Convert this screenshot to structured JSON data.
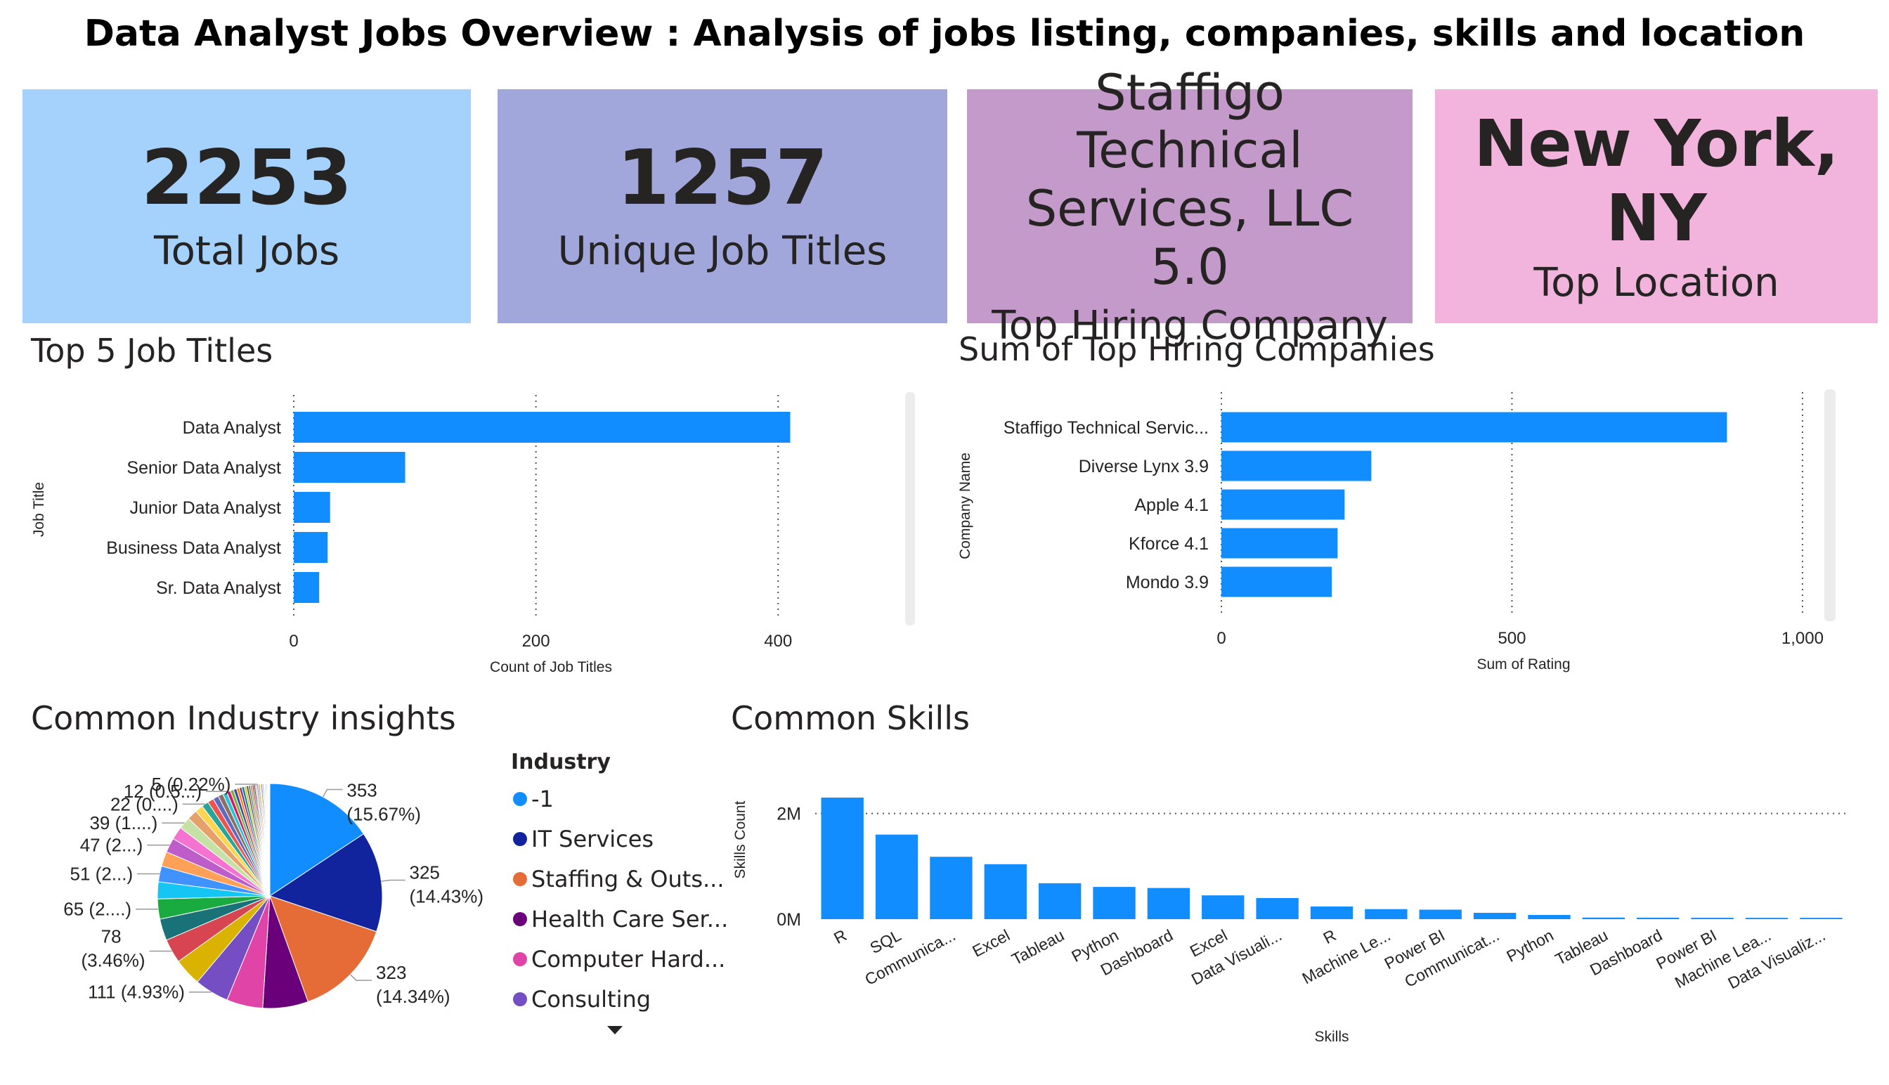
{
  "title": "Data Analyst Jobs Overview : Analysis of jobs listing, companies, skills and location",
  "cards": [
    {
      "value": "2253",
      "label": "Total Jobs",
      "color": "#a4d2fc"
    },
    {
      "value": "1257",
      "label": "Unique Job Titles",
      "color": "#a2a7db"
    },
    {
      "value": "Staffigo Technical Services, LLC 5.0",
      "label": "Top Hiring Company",
      "color": "#c39ac9"
    },
    {
      "value": "New York, NY",
      "label": "Top Location",
      "color": "#f2b4dc"
    }
  ],
  "sections": {
    "job_titles": "Top 5 Job Titles",
    "companies": "Sum of Top Hiring Companies",
    "industry": "Common Industry insights",
    "skills": "Common Skills"
  },
  "chart_data": [
    {
      "type": "bar",
      "orientation": "horizontal",
      "categories": [
        "Data Analyst",
        "Senior Data Analyst",
        "Junior Data Analyst",
        "Business Data Analyst",
        "Sr. Data Analyst"
      ],
      "values": [
        410,
        92,
        30,
        28,
        21
      ],
      "xlabel": "Count of Job Titles",
      "ylabel": "Job Title",
      "xlim": [
        0,
        520
      ],
      "xticks": [
        0,
        200,
        400
      ],
      "xtick_labels": [
        "0",
        "200",
        "400"
      ],
      "color": "#118dff",
      "grid": "vertical-dotted"
    },
    {
      "type": "bar",
      "orientation": "horizontal",
      "categories": [
        "Staffigo Technical Servic...",
        "Diverse Lynx 3.9",
        "Apple 4.1",
        "Kforce 4.1",
        "Mondo 3.9"
      ],
      "values": [
        870,
        258,
        212,
        200,
        190
      ],
      "xlabel": "Sum of Rating",
      "ylabel": "Company Name",
      "xlim": [
        0,
        1040
      ],
      "xticks": [
        0,
        500,
        1000
      ],
      "xtick_labels": [
        "0",
        "500",
        "1,000"
      ],
      "color": "#118dff",
      "grid": "vertical-dotted"
    },
    {
      "type": "pie",
      "legend_title": "Industry",
      "legend": [
        {
          "name": "-1",
          "color": "#118dff"
        },
        {
          "name": "IT Services",
          "color": "#12239e"
        },
        {
          "name": "Staffing & Outs...",
          "color": "#e66c37"
        },
        {
          "name": "Health Care Ser...",
          "color": "#6b007b"
        },
        {
          "name": "Computer Hard...",
          "color": "#e044a7"
        },
        {
          "name": "Consulting",
          "color": "#744ec2"
        }
      ],
      "slices": [
        {
          "value": 353,
          "color": "#118dff",
          "label": "353 (15.67%)"
        },
        {
          "value": 325,
          "color": "#12239e",
          "label": "325 (14.43%)"
        },
        {
          "value": 323,
          "color": "#e66c37",
          "label": "323 (14.34%)"
        },
        {
          "value": 147,
          "color": "#6b007b",
          "label": ""
        },
        {
          "value": 117,
          "color": "#e044a7",
          "label": ""
        },
        {
          "value": 111,
          "color": "#744ec2",
          "label": "111 (4.93%)"
        },
        {
          "value": 89,
          "color": "#d9b300",
          "label": ""
        },
        {
          "value": 78,
          "color": "#d64550",
          "label": "78 (3.46%)"
        },
        {
          "value": 70,
          "color": "#197278",
          "label": ""
        },
        {
          "value": 65,
          "color": "#1aab40",
          "label": "65 (2....)"
        },
        {
          "value": 55,
          "color": "#15c6f4",
          "label": ""
        },
        {
          "value": 51,
          "color": "#4092ff",
          "label": "51 (2...)"
        },
        {
          "value": 48,
          "color": "#ffa058",
          "label": ""
        },
        {
          "value": 47,
          "color": "#be5dc9",
          "label": "47 (2...)"
        },
        {
          "value": 42,
          "color": "#f472d0",
          "label": ""
        },
        {
          "value": 39,
          "color": "#c5e1a5",
          "label": "39 (1....)"
        },
        {
          "value": 33,
          "color": "#e6a16a",
          "label": ""
        },
        {
          "value": 26,
          "color": "#ffd54f",
          "label": ""
        },
        {
          "value": 22,
          "color": "#26a69a",
          "label": "22 (0....)"
        },
        {
          "value": 20,
          "color": "#ef5350",
          "label": ""
        },
        {
          "value": 18,
          "color": "#5c6bc0",
          "label": ""
        },
        {
          "value": 16,
          "color": "#8d6e63",
          "label": ""
        },
        {
          "value": 14,
          "color": "#26c6da",
          "label": ""
        },
        {
          "value": 12,
          "color": "#d81b60",
          "label": "12 (0.5...)"
        },
        {
          "value": 11,
          "color": "#7cb342",
          "label": ""
        },
        {
          "value": 10,
          "color": "#3949ab",
          "label": ""
        },
        {
          "value": 9,
          "color": "#fb8c00",
          "label": ""
        },
        {
          "value": 8,
          "color": "#8e24aa",
          "label": ""
        },
        {
          "value": 8,
          "color": "#00897b",
          "label": ""
        },
        {
          "value": 7,
          "color": "#c0ca33",
          "label": ""
        },
        {
          "value": 7,
          "color": "#6d4c41",
          "label": ""
        },
        {
          "value": 6,
          "color": "#546e7a",
          "label": ""
        },
        {
          "value": 6,
          "color": "#9e9d24",
          "label": ""
        },
        {
          "value": 5,
          "color": "#ad1457",
          "label": ""
        },
        {
          "value": 5,
          "color": "#4e342e",
          "label": ""
        },
        {
          "value": 5,
          "color": "#b0bec5",
          "label": ""
        },
        {
          "value": 5,
          "color": "#a1887f",
          "label": "5 (0.22%)"
        },
        {
          "value": 5,
          "color": "#9e9e9e",
          "label": ""
        },
        {
          "value": 4,
          "color": "#cddc39",
          "label": ""
        },
        {
          "value": 4,
          "color": "#795548",
          "label": ""
        },
        {
          "value": 4,
          "color": "#b39ddb",
          "label": ""
        },
        {
          "value": 3,
          "color": "#80cbc4",
          "label": ""
        },
        {
          "value": 3,
          "color": "#ffcc80",
          "label": ""
        },
        {
          "value": 3,
          "color": "#90a4ae",
          "label": ""
        },
        {
          "value": 3,
          "color": "#bcaaa4",
          "label": ""
        },
        {
          "value": 2,
          "color": "#e0e0e0",
          "label": ""
        },
        {
          "value": 2,
          "color": "#a5d6a7",
          "label": ""
        },
        {
          "value": 2,
          "color": "#f48fb1",
          "label": ""
        },
        {
          "value": 2,
          "color": "#9fa8da",
          "label": ""
        }
      ]
    },
    {
      "type": "bar",
      "orientation": "vertical",
      "categories": [
        "R",
        "SQL",
        "Communica...",
        "Excel",
        "Tableau",
        "Python",
        "Dashboard",
        "Excel",
        "Data Visuali...",
        "R",
        "Machine Le...",
        "Power BI",
        "Communicat...",
        "Python",
        "Tableau",
        "Dashboard",
        "Power BI",
        "Machine Lea...",
        "Data Visualiz..."
      ],
      "values": [
        2300000,
        1600000,
        1180000,
        1040000,
        680000,
        610000,
        590000,
        450000,
        400000,
        240000,
        190000,
        180000,
        120000,
        80000,
        30000,
        28000,
        26000,
        25000,
        25000
      ],
      "xlabel": "Skills",
      "ylabel": "Skills Count",
      "ylim": [
        0,
        2300000
      ],
      "yticks": [
        0,
        2000000
      ],
      "ytick_labels": [
        "0M",
        "2M"
      ],
      "color": "#118dff",
      "grid": "horizontal-dotted"
    }
  ]
}
